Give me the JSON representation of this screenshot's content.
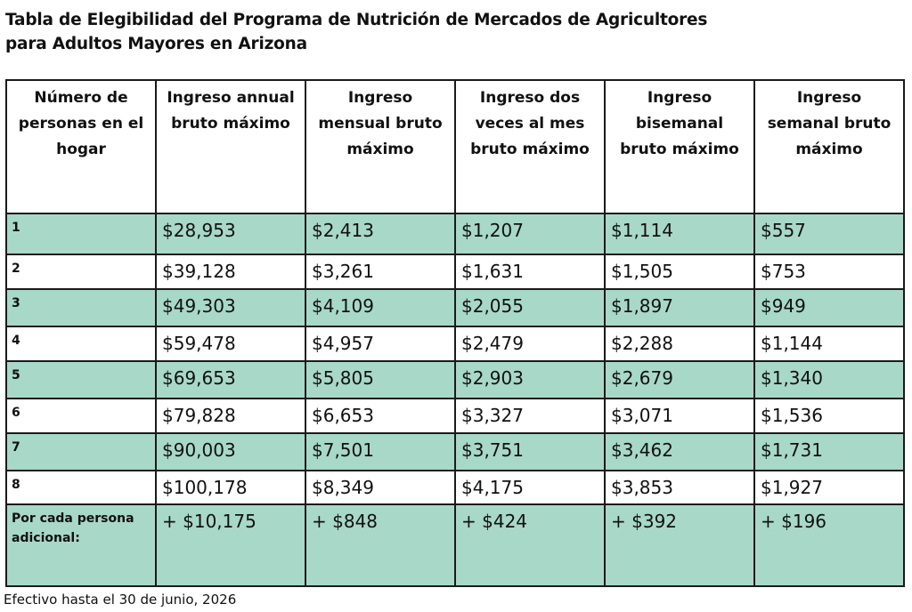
{
  "title": {
    "line1": "Tabla de Elegibilidad del Programa de Nutrición de Mercados de Agricultores",
    "line2": "para Adultos Mayores en Arizona"
  },
  "table": {
    "headers": [
      "Número de personas en el hogar",
      "Ingreso annual bruto máximo",
      "Ingreso mensual bruto máximo",
      "Ingreso dos veces al mes bruto máximo",
      "Ingreso bisemanal bruto máximo",
      "Ingreso semanal bruto máximo"
    ],
    "rows": [
      [
        "1",
        "$28,953",
        "$2,413",
        "$1,207",
        "$1,114",
        "$557"
      ],
      [
        "2",
        "$39,128",
        "$3,261",
        "$1,631",
        "$1,505",
        "$753"
      ],
      [
        "3",
        "$49,303",
        "$4,109",
        "$2,055",
        "$1,897",
        "$949"
      ],
      [
        "4",
        "$59,478",
        "$4,957",
        "$2,479",
        "$2,288",
        "$1,144"
      ],
      [
        "5",
        "$69,653",
        "$5,805",
        "$2,903",
        "$2,679",
        "$1,340"
      ],
      [
        "6",
        "$79,828",
        "$6,653",
        "$3,327",
        "$3,071",
        "$1,536"
      ],
      [
        "7",
        "$90,003",
        "$7,501",
        "$3,751",
        "$3,462",
        "$1,731"
      ],
      [
        "8",
        "$100,178",
        "$8,349",
        "$4,175",
        "$3,853",
        "$1,927"
      ],
      [
        "Por cada persona adicional:",
        "+ $10,175",
        "+ $848",
        "+ $424",
        "+ $392",
        "+ $196"
      ]
    ]
  },
  "footnote": "Efectivo hasta el 30 de junio, 2026",
  "colors": {
    "shaded_row": "#a8d8c8",
    "border": "#1a1a1a"
  }
}
